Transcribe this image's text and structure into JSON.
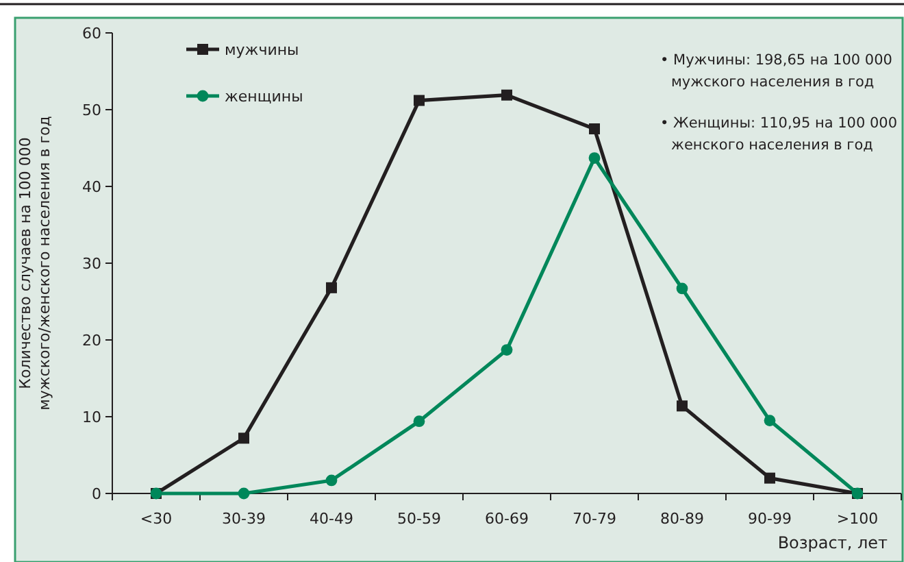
{
  "chart_data": {
    "type": "line",
    "xlabel": "Возраст, лет",
    "ylabel": "Количество случаев на 100 000\nмужского/женского населения в год",
    "categories": [
      "<30",
      "30-39",
      "40-49",
      "50-59",
      "60-69",
      "70-79",
      "80-89",
      "90-99",
      ">100"
    ],
    "ylim": [
      0,
      60
    ],
    "yticks": [
      0,
      10,
      20,
      30,
      40,
      50,
      60
    ],
    "legend": "top left",
    "series": [
      {
        "name": "мужчины",
        "color": "#231f20",
        "marker": "square",
        "values": [
          0,
          7.2,
          26.8,
          51.2,
          51.9,
          47.5,
          11.4,
          2.0,
          0
        ]
      },
      {
        "name": "женщины",
        "color": "#00875a",
        "marker": "circle",
        "values": [
          0,
          0,
          1.7,
          9.4,
          18.7,
          43.7,
          26.7,
          9.5,
          0
        ]
      }
    ],
    "annotations": [
      "• Мужчины: 198,65 на 100 000\nмужского населения в год",
      "• Женщины: 110,95 на 100 000\nженского населения в год"
    ]
  }
}
